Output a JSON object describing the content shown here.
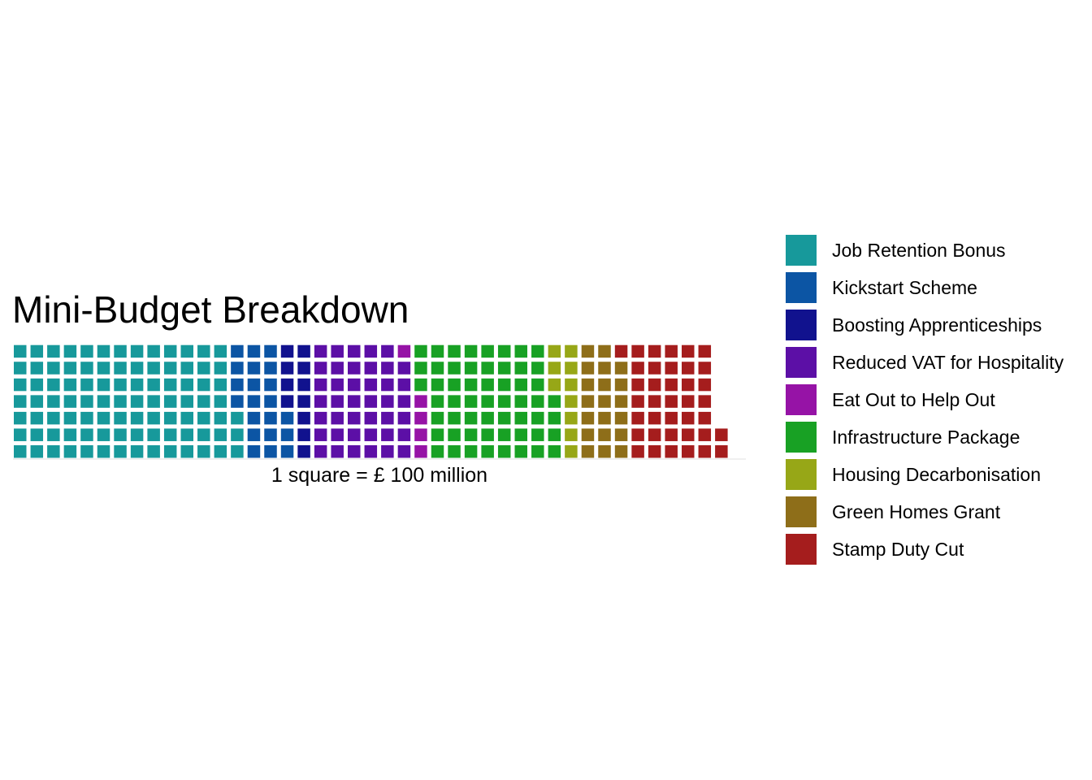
{
  "chart_data": {
    "type": "waffle",
    "title": "Mini-Budget Breakdown",
    "caption": "1 square = £ 100 million",
    "unit_per_square": 100,
    "unit": "£ million",
    "rows": 7,
    "legend_position": "right",
    "grid": false,
    "categories": [
      {
        "name": "Job Retention Bonus",
        "squares": 94,
        "color": "#17999b"
      },
      {
        "name": "Kickstart Scheme",
        "squares": 21,
        "color": "#0c55a4"
      },
      {
        "name": "Boosting Apprenticeships",
        "squares": 11,
        "color": "#11128e"
      },
      {
        "name": "Reduced VAT for Hospitality",
        "squares": 41,
        "color": "#5c0fa6"
      },
      {
        "name": "Eat Out to Help Out",
        "squares": 5,
        "color": "#9613a6"
      },
      {
        "name": "Infrastructure Package",
        "squares": 56,
        "color": "#18a124"
      },
      {
        "name": "Housing Decarbonisation",
        "squares": 10,
        "color": "#97a717"
      },
      {
        "name": "Green Homes Grant",
        "squares": 20,
        "color": "#8e6e19"
      },
      {
        "name": "Stamp Duty Cut",
        "squares": 38,
        "color": "#a51d1d"
      }
    ]
  }
}
